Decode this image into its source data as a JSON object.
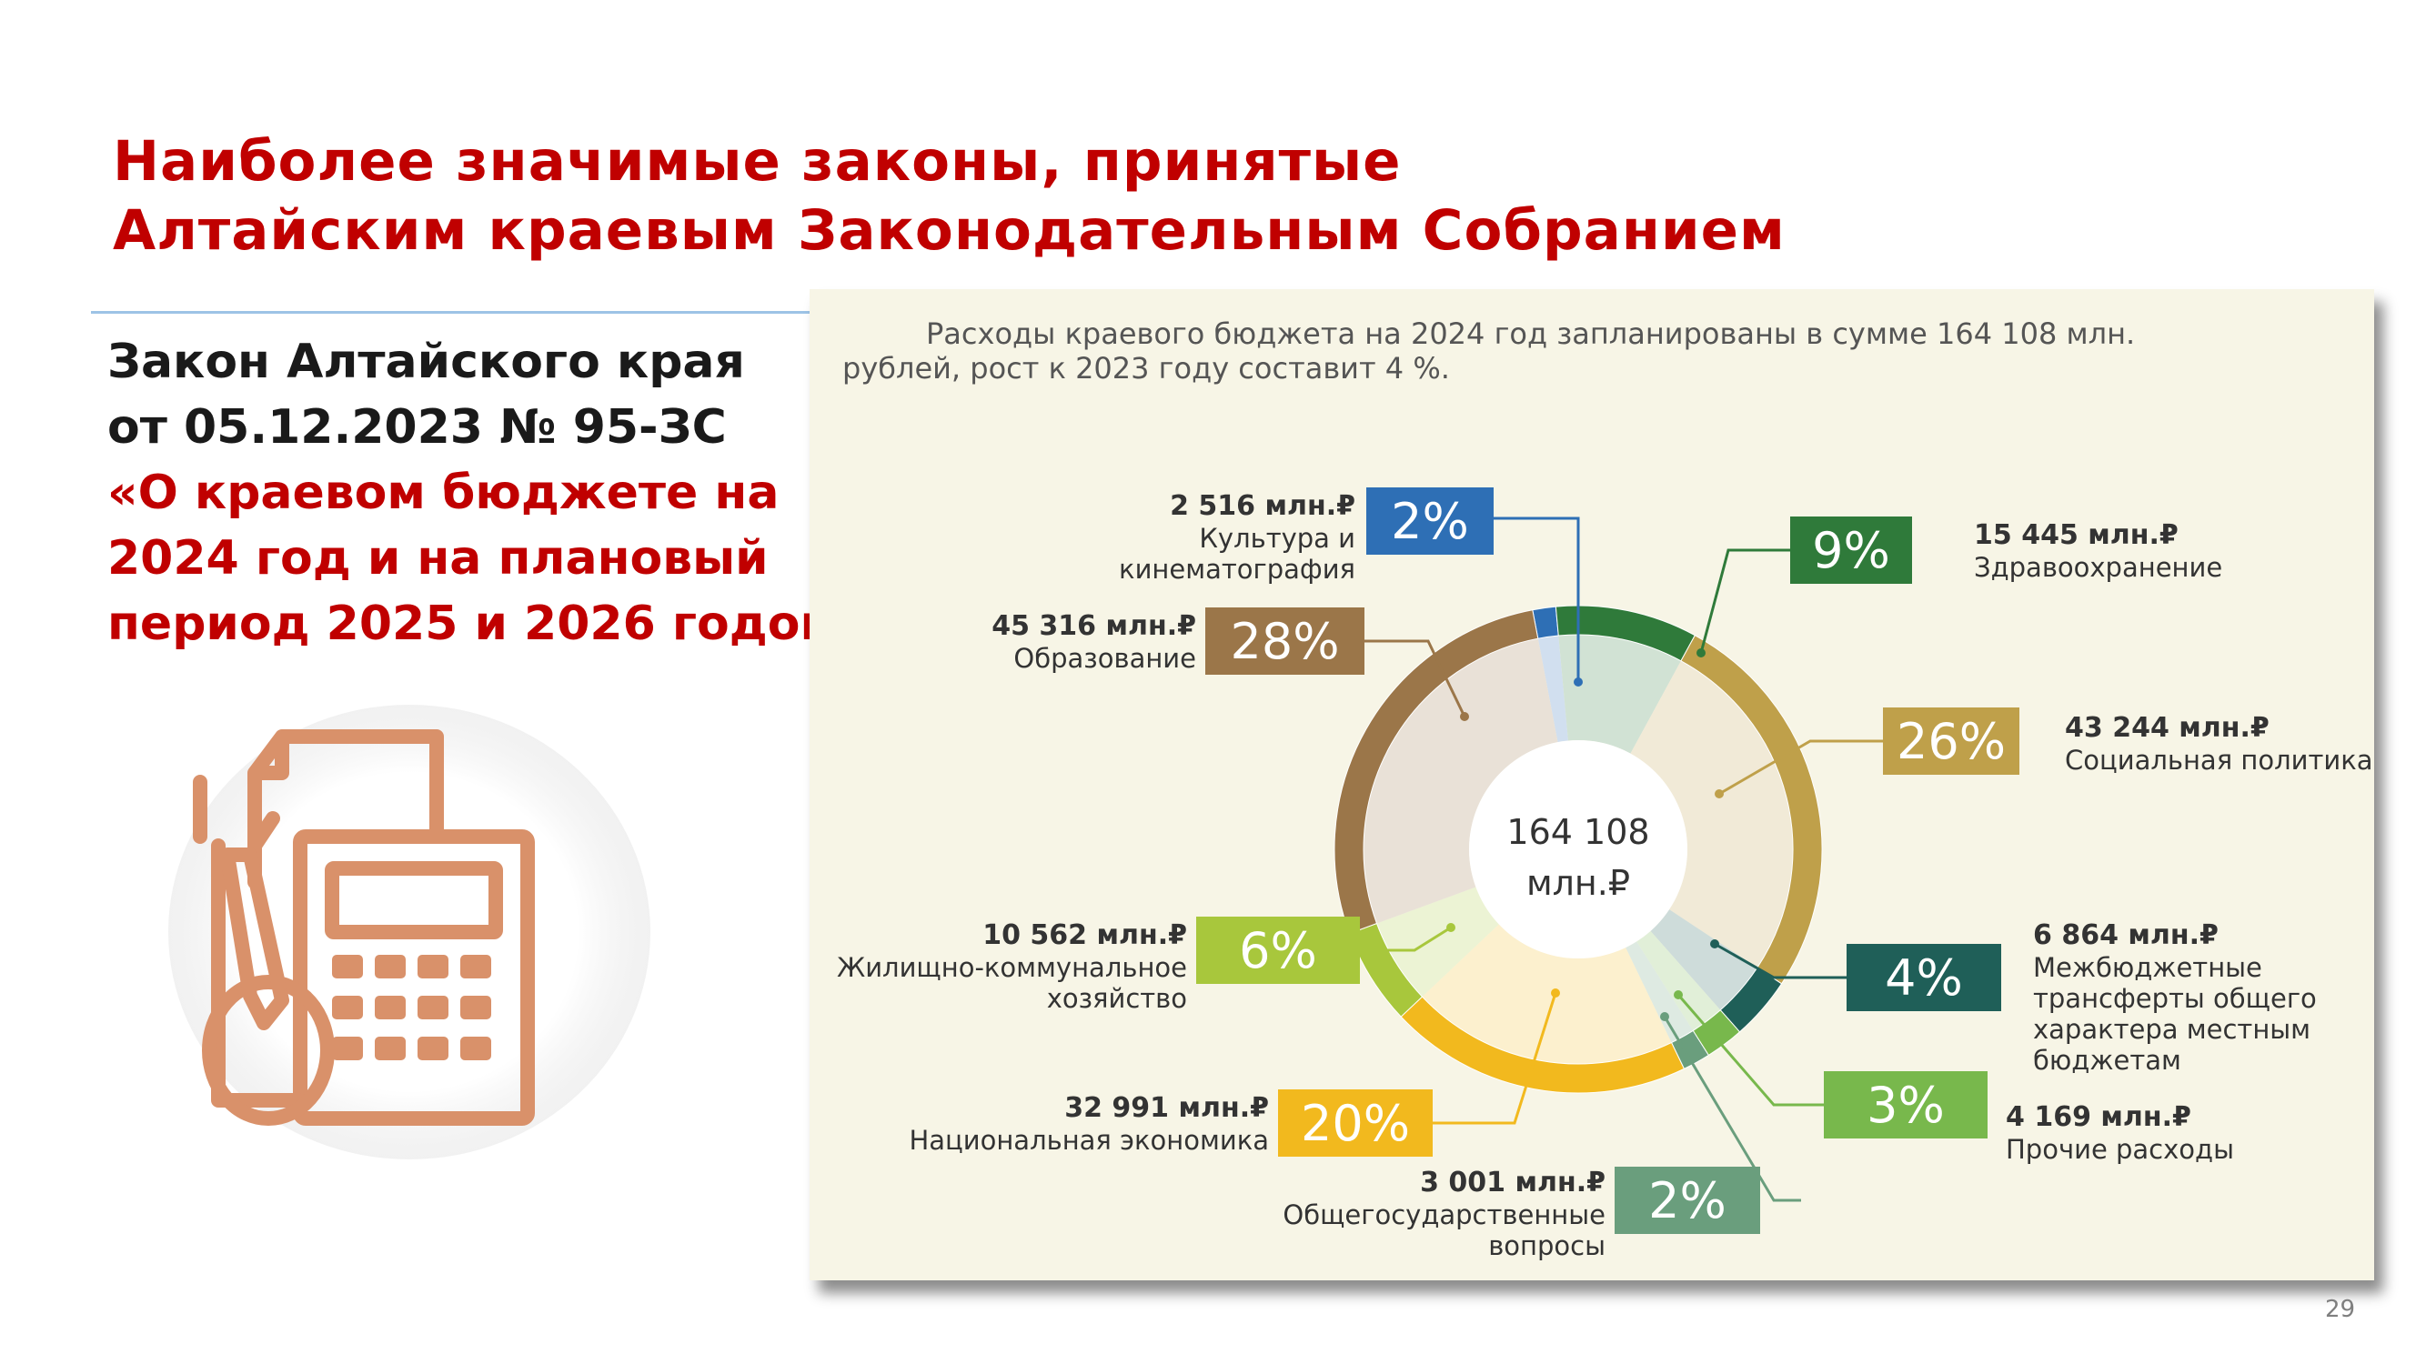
{
  "slide": {
    "title_lines": [
      "Наиболее значимые законы, принятые",
      "Алтайским краевым Законодательным Собранием"
    ],
    "law_lines": [
      "Закон Алтайского края",
      "от 05.12.2023 № 95-ЗС",
      "«О краевом бюджете на",
      "2024 год и на плановый",
      "период 2025 и 2026 годов»"
    ],
    "page_number": "29",
    "icon": "calculator-document-icon",
    "colors": {
      "title_red": "#c00000",
      "icon_orange": "#d9916a"
    }
  },
  "chart_data": {
    "type": "pie",
    "subtitle_lines": [
      "Расходы краевого бюджета на 2024 год запланированы в сумме 164 108  млн.",
      "рублей, рост к 2023 году составит 4 %."
    ],
    "center_lines": [
      "164 108",
      "млн.₽"
    ],
    "total_mln_rub": 164108,
    "slices": [
      {
        "pct": 2,
        "pct_label": "2%",
        "value_label": "2 516 млн.₽",
        "name_lines": [
          "Культура и",
          "кинематография"
        ],
        "value": 2516,
        "color": "#2e6fb5"
      },
      {
        "pct": 9,
        "pct_label": "9%",
        "value_label": "15 445 млн.₽",
        "name_lines": [
          "Здравоохранение"
        ],
        "value": 15445,
        "color": "#2f7a3a"
      },
      {
        "pct": 26,
        "pct_label": "26%",
        "value_label": "43 244 млн.₽",
        "name_lines": [
          "Социальная политика"
        ],
        "value": 43244,
        "color": "#bfa04a"
      },
      {
        "pct": 4,
        "pct_label": "4%",
        "value_label": "6 864 млн.₽",
        "name_lines": [
          "Межбюджетные",
          "трансферты общего",
          "характера местным",
          "бюджетам"
        ],
        "value": 6864,
        "color": "#1f5f58"
      },
      {
        "pct": 3,
        "pct_label": "3%",
        "value_label": "4 169 млн.₽",
        "name_lines": [
          "Прочие расходы"
        ],
        "value": 4169,
        "color": "#78b84c"
      },
      {
        "pct": 2,
        "pct_label": "2%",
        "value_label": "3 001 млн.₽",
        "name_lines": [
          "Общегосударственные",
          "вопросы"
        ],
        "value": 3001,
        "color": "#6a9e7d"
      },
      {
        "pct": 20,
        "pct_label": "20%",
        "value_label": "32 991 млн.₽",
        "name_lines": [
          "Национальная экономика"
        ],
        "value": 32991,
        "color": "#f2b91e"
      },
      {
        "pct": 6,
        "pct_label": "6%",
        "value_label": "10 562 млн.₽",
        "name_lines": [
          "Жилищно-коммунальное",
          "хозяйство"
        ],
        "value": 10562,
        "color": "#a8c73c"
      },
      {
        "pct": 28,
        "pct_label": "28%",
        "value_label": "45 316 млн.₽",
        "name_lines": [
          "Образование"
        ],
        "value": 45316,
        "color": "#9b7649"
      }
    ]
  }
}
